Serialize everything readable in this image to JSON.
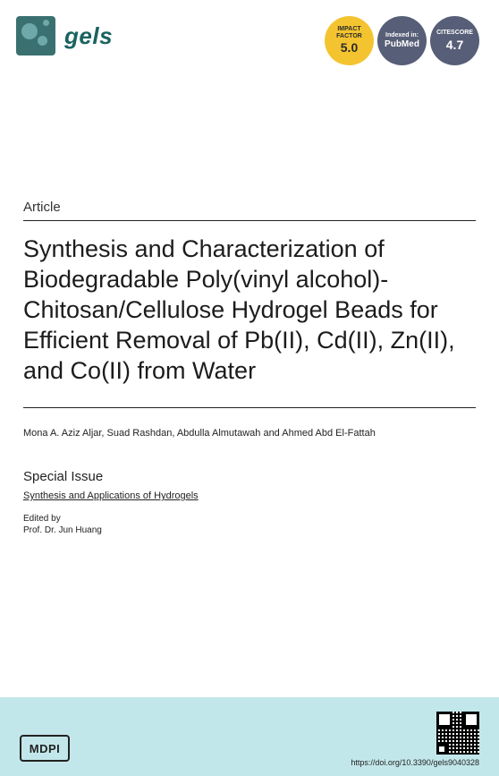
{
  "header": {
    "journal_name": "gels",
    "badges": {
      "impact": {
        "line1": "IMPACT",
        "line2": "FACTOR",
        "value": "5.0",
        "bg": "#f4c430",
        "fg": "#2b2b2b"
      },
      "pubmed": {
        "line1": "Indexed in:",
        "value": "PubMed",
        "bg": "#575e77",
        "fg": "#ffffff"
      },
      "citescore": {
        "line1": "CITESCORE",
        "value": "4.7",
        "bg": "#575e77",
        "fg": "#ffffff"
      }
    }
  },
  "article": {
    "label": "Article",
    "title": "Synthesis and Characterization of Biodegradable Poly(vinyl alcohol)-Chitosan/Cellulose Hydrogel Beads for Efficient Removal of Pb(II), Cd(II), Zn(II), and Co(II) from Water",
    "authors": "Mona A. Aziz Aljar, Suad Rashdan, Abdulla Almutawah and Ahmed Abd El-Fattah",
    "special_issue_label": "Special Issue",
    "special_issue_link": "Synthesis and Applications of Hydrogels",
    "edited_by_label": "Edited by",
    "editor": "Prof. Dr. Jun Huang"
  },
  "footer": {
    "publisher": "MDPI",
    "doi": "https://doi.org/10.3390/gels9040328",
    "footer_bg": "#c2e7ea"
  },
  "colors": {
    "journal_color": "#1a6360",
    "text": "#1c1c1c",
    "logo_bg": "#3a7070",
    "logo_dot": "#6fa8a8"
  },
  "typography": {
    "title_fontsize": 27,
    "title_lineheight": 1.26,
    "journal_fontsize": 26,
    "article_label_fontsize": 15,
    "authors_fontsize": 11,
    "special_issue_fontsize": 15,
    "special_link_fontsize": 11,
    "editor_fontsize": 10,
    "doi_fontsize": 9
  }
}
